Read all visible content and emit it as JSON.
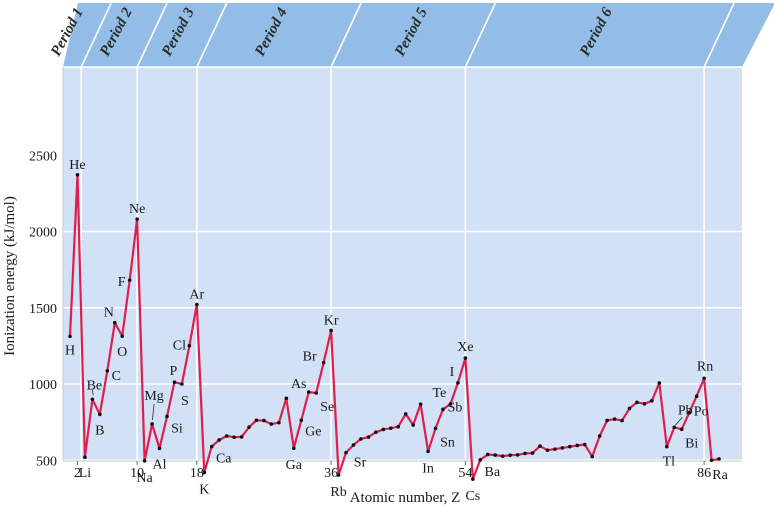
{
  "chart_data": {
    "type": "line",
    "xlabel": "Atomic number, Z",
    "ylabel": "Ionization energy (kJ/mol)",
    "xticks": [
      2,
      10,
      18,
      36,
      54,
      86
    ],
    "yticks": [
      500,
      1000,
      1500,
      2000,
      2500
    ],
    "ylim": [
      0,
      2500
    ],
    "grid": true,
    "periods": [
      {
        "label": "Period 1",
        "from": 1,
        "to": 2
      },
      {
        "label": "Period 2",
        "from": 3,
        "to": 10
      },
      {
        "label": "Period 3",
        "from": 11,
        "to": 18
      },
      {
        "label": "Period 4",
        "from": 19,
        "to": 36
      },
      {
        "label": "Period 5",
        "from": 37,
        "to": 54
      },
      {
        "label": "Period 6",
        "from": 55,
        "to": 86
      }
    ],
    "series": [
      {
        "x": [
          1,
          2,
          3,
          4,
          5,
          6,
          7,
          8,
          9,
          10,
          11,
          12,
          13,
          14,
          15,
          16,
          17,
          18,
          19,
          20,
          21,
          22,
          23,
          24,
          25,
          26,
          27,
          28,
          29,
          30,
          31,
          32,
          33,
          34,
          35,
          36,
          37,
          38,
          39,
          40,
          41,
          42,
          43,
          44,
          45,
          46,
          47,
          48,
          49,
          50,
          51,
          52,
          53,
          54,
          55,
          56,
          57,
          58,
          59,
          60,
          61,
          62,
          63,
          64,
          65,
          66,
          67,
          68,
          69,
          70,
          71,
          72,
          73,
          74,
          75,
          76,
          77,
          78,
          79,
          80,
          81,
          82,
          83,
          84,
          85,
          86,
          87,
          88
        ],
        "values": [
          1312,
          2372,
          520,
          900,
          801,
          1086,
          1402,
          1314,
          1681,
          2081,
          496,
          738,
          578,
          787,
          1012,
          1000,
          1251,
          1521,
          419,
          590,
          633,
          659,
          651,
          653,
          717,
          762,
          760,
          737,
          746,
          906,
          579,
          762,
          947,
          941,
          1140,
          1351,
          403,
          550,
          600,
          640,
          652,
          684,
          702,
          710,
          720,
          804,
          731,
          868,
          558,
          709,
          834,
          869,
          1008,
          1170,
          376,
          503,
          538,
          534,
          527,
          533,
          535,
          545,
          547,
          593,
          566,
          573,
          581,
          589,
          597,
          603,
          524,
          659,
          761,
          770,
          760,
          840,
          880,
          870,
          890,
          1007,
          589,
          716,
          703,
          812,
          920,
          1037,
          500,
          509
        ]
      }
    ],
    "labels": [
      {
        "z": 1,
        "text": "H"
      },
      {
        "z": 2,
        "text": "He"
      },
      {
        "z": 3,
        "text": "Li"
      },
      {
        "z": 4,
        "text": "Be"
      },
      {
        "z": 5,
        "text": "B"
      },
      {
        "z": 6,
        "text": "C"
      },
      {
        "z": 7,
        "text": "N"
      },
      {
        "z": 8,
        "text": "O"
      },
      {
        "z": 9,
        "text": "F"
      },
      {
        "z": 10,
        "text": "Ne"
      },
      {
        "z": 11,
        "text": "Na"
      },
      {
        "z": 12,
        "text": "Mg"
      },
      {
        "z": 13,
        "text": "Al"
      },
      {
        "z": 14,
        "text": "Si"
      },
      {
        "z": 15,
        "text": "P"
      },
      {
        "z": 16,
        "text": "S"
      },
      {
        "z": 17,
        "text": "Cl"
      },
      {
        "z": 18,
        "text": "Ar"
      },
      {
        "z": 19,
        "text": "K"
      },
      {
        "z": 20,
        "text": "Ca"
      },
      {
        "z": 31,
        "text": "Ga"
      },
      {
        "z": 32,
        "text": "Ge"
      },
      {
        "z": 33,
        "text": "As"
      },
      {
        "z": 34,
        "text": "Se"
      },
      {
        "z": 35,
        "text": "Br"
      },
      {
        "z": 36,
        "text": "Kr"
      },
      {
        "z": 37,
        "text": "Rb"
      },
      {
        "z": 38,
        "text": "Sr"
      },
      {
        "z": 49,
        "text": "In"
      },
      {
        "z": 50,
        "text": "Sn"
      },
      {
        "z": 51,
        "text": "Sb"
      },
      {
        "z": 52,
        "text": "Te"
      },
      {
        "z": 53,
        "text": "I"
      },
      {
        "z": 54,
        "text": "Xe"
      },
      {
        "z": 55,
        "text": "Cs"
      },
      {
        "z": 56,
        "text": "Ba"
      },
      {
        "z": 81,
        "text": "Tl"
      },
      {
        "z": 82,
        "text": "Pb"
      },
      {
        "z": 83,
        "text": "Bi"
      },
      {
        "z": 84,
        "text": "Po"
      },
      {
        "z": 86,
        "text": "Rn"
      },
      {
        "z": 88,
        "text": "Ra"
      }
    ]
  },
  "colors": {
    "panel": "#d2e1f5",
    "header": "#93bde6",
    "grid": "#ffffff",
    "line": "#dd1f4e",
    "marker": "#111111"
  }
}
